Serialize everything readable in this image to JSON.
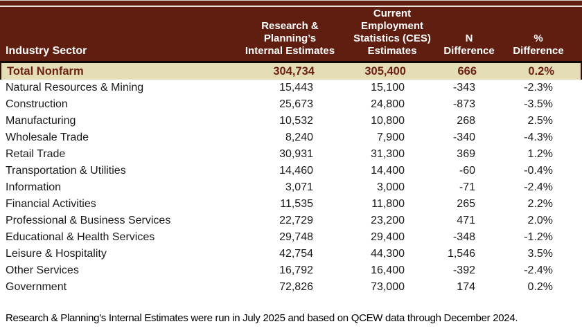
{
  "colors": {
    "header_bg": "#5f1e10",
    "header_text": "#ffffff",
    "header_accent_line": "#e7e5e2",
    "separator_rule": "#0f0703",
    "total_row_bg": "#e5ddb6",
    "total_row_text": "#6b2015",
    "body_text": "#1a1a1a",
    "page_bg": "#ffffff"
  },
  "table": {
    "columns": [
      {
        "key": "sector",
        "label": "Industry Sector"
      },
      {
        "key": "internal",
        "label": "Research &\nPlanning’s\nInternal Estimates"
      },
      {
        "key": "ces",
        "label": "Current\nEmployment\nStatistics (CES)\nEstimates"
      },
      {
        "key": "n_diff",
        "label": "N\nDifference"
      },
      {
        "key": "pct_diff",
        "label": "%\nDifference"
      }
    ],
    "total_row": {
      "sector": "Total Nonfarm",
      "internal": "304,734",
      "ces": "305,400",
      "n_diff": "666",
      "pct_diff": "0.2%"
    },
    "rows": [
      {
        "sector": "Natural Resources & Mining",
        "internal": "15,443",
        "ces": "15,100",
        "n_diff": "-343",
        "pct_diff": "-2.3%"
      },
      {
        "sector": "Construction",
        "internal": "25,673",
        "ces": "24,800",
        "n_diff": "-873",
        "pct_diff": "-3.5%"
      },
      {
        "sector": "Manufacturing",
        "internal": "10,532",
        "ces": "10,800",
        "n_diff": "268",
        "pct_diff": "2.5%"
      },
      {
        "sector": "Wholesale Trade",
        "internal": "8,240",
        "ces": "7,900",
        "n_diff": "-340",
        "pct_diff": "-4.3%"
      },
      {
        "sector": "Retail Trade",
        "internal": "30,931",
        "ces": "31,300",
        "n_diff": "369",
        "pct_diff": "1.2%"
      },
      {
        "sector": "Transportation & Utilities",
        "internal": "14,460",
        "ces": "14,400",
        "n_diff": "-60",
        "pct_diff": "-0.4%"
      },
      {
        "sector": "Information",
        "internal": "3,071",
        "ces": "3,000",
        "n_diff": "-71",
        "pct_diff": "-2.4%"
      },
      {
        "sector": "Financial Activities",
        "internal": "11,535",
        "ces": "11,800",
        "n_diff": "265",
        "pct_diff": "2.2%"
      },
      {
        "sector": "Professional & Business Services",
        "internal": "22,729",
        "ces": "23,200",
        "n_diff": "471",
        "pct_diff": "2.0%"
      },
      {
        "sector": "Educational & Health Services",
        "internal": "29,748",
        "ces": "29,400",
        "n_diff": "-348",
        "pct_diff": "-1.2%"
      },
      {
        "sector": "Leisure & Hospitality",
        "internal": "42,754",
        "ces": "44,300",
        "n_diff": "1,546",
        "pct_diff": "3.5%"
      },
      {
        "sector": "Other Services",
        "internal": "16,792",
        "ces": "16,400",
        "n_diff": "-392",
        "pct_diff": "-2.4%"
      },
      {
        "sector": "Government",
        "internal": "72,826",
        "ces": "73,000",
        "n_diff": "174",
        "pct_diff": "0.2%"
      }
    ]
  },
  "footnote": "Research & Planning's Internal Estimates were run in July 2025 and based on QCEW data through December 2024."
}
